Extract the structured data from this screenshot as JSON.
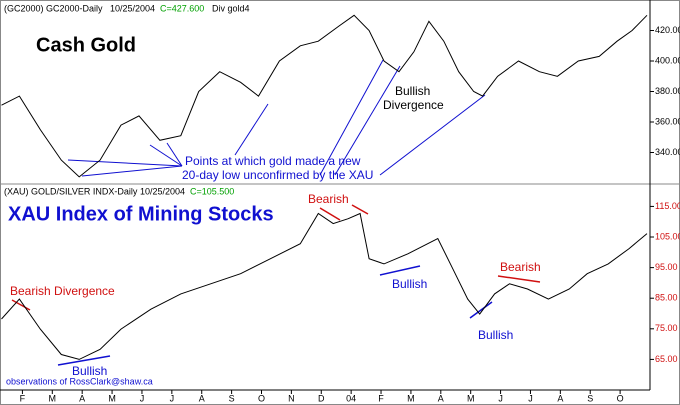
{
  "chart_data": [
    {
      "type": "line",
      "title": "Cash Gold",
      "header": [
        "(GC2000) GC2000-Daily",
        "10/25/2004",
        "C=427.600",
        "Div gold4"
      ],
      "color": "#000000",
      "x": [
        0.3,
        0.9,
        1.6,
        2.3,
        2.9,
        3.6,
        4.3,
        4.9,
        5.6,
        6.3,
        6.9,
        7.6,
        8.3,
        8.9,
        9.6,
        10.3,
        10.9,
        11.6,
        12.1,
        12.6,
        13.1,
        13.6,
        14.1,
        14.6,
        15.1,
        15.6,
        16.1,
        16.4,
        16.9,
        17.6,
        18.3,
        18.9,
        19.6,
        20.3,
        20.9,
        21.4,
        21.9
      ],
      "values": [
        371,
        377,
        355,
        335,
        324,
        335,
        358,
        364,
        348,
        351,
        380,
        393,
        386,
        377,
        400,
        410,
        413,
        423,
        430,
        420,
        400,
        393,
        406,
        426,
        413,
        393,
        380,
        377,
        390,
        400,
        393,
        390,
        400,
        403,
        413,
        420,
        430
      ],
      "xlim": [
        0.25,
        22
      ],
      "ylim": [
        320,
        440
      ],
      "yticks": [
        {
          "value": 340,
          "label": "340.00"
        },
        {
          "value": 360,
          "label": "360.00"
        },
        {
          "value": 380,
          "label": "380.00"
        },
        {
          "value": 400,
          "label": "400.00"
        },
        {
          "value": 420,
          "label": "420.00"
        }
      ],
      "annotations": [
        "Points at which gold made a new",
        "20-day low unconfirmed by the XAU",
        "Bullish",
        "Divergence"
      ]
    },
    {
      "type": "line",
      "title": "XAU Index of Mining Stocks",
      "header": [
        "(XAU) GOLD/SILVER INDX-Daily",
        "10/25/2004",
        "C=105.500"
      ],
      "color": "#000000",
      "x": [
        0.3,
        0.9,
        1.6,
        2.3,
        2.9,
        3.6,
        4.3,
        5.3,
        6.3,
        7.3,
        8.3,
        9.3,
        10.3,
        10.9,
        11.4,
        11.9,
        12.3,
        12.6,
        13.1,
        13.9,
        14.9,
        15.4,
        15.9,
        16.3,
        16.8,
        17.3,
        17.9,
        18.6,
        19.3,
        19.9,
        20.6,
        21.3,
        21.9
      ],
      "values": [
        78.2,
        84.7,
        74.9,
        66.6,
        65,
        68.3,
        74.9,
        81.4,
        86.4,
        89.7,
        93,
        97.9,
        102.8,
        112.7,
        109.4,
        111,
        112.7,
        97.9,
        96.2,
        99.5,
        104.5,
        94.6,
        84.7,
        79.8,
        86.4,
        89.7,
        88,
        84.7,
        88,
        93,
        96.2,
        101.2,
        106.1
      ],
      "xlim": [
        0.25,
        22
      ],
      "ylim": [
        55,
        122
      ],
      "yticks": [
        {
          "value": 65,
          "label": "65.00"
        },
        {
          "value": 75,
          "label": "75.00"
        },
        {
          "value": 85,
          "label": "85.00"
        },
        {
          "value": 95,
          "label": "95.00"
        },
        {
          "value": 105,
          "label": "105.00"
        },
        {
          "value": 115,
          "label": "115.00"
        }
      ],
      "xticks": [
        {
          "value": 1,
          "label": "F"
        },
        {
          "value": 2,
          "label": "M"
        },
        {
          "value": 3,
          "label": "A"
        },
        {
          "value": 4,
          "label": "M"
        },
        {
          "value": 5,
          "label": "J"
        },
        {
          "value": 6,
          "label": "J"
        },
        {
          "value": 7,
          "label": "A"
        },
        {
          "value": 8,
          "label": "S"
        },
        {
          "value": 9,
          "label": "O"
        },
        {
          "value": 10,
          "label": "N"
        },
        {
          "value": 11,
          "label": "D"
        },
        {
          "value": 12,
          "label": "04"
        },
        {
          "value": 13,
          "label": "F"
        },
        {
          "value": 14,
          "label": "M"
        },
        {
          "value": 15,
          "label": "A"
        },
        {
          "value": 16,
          "label": "M"
        },
        {
          "value": 17,
          "label": "J"
        },
        {
          "value": 18,
          "label": "J"
        },
        {
          "value": 19,
          "label": "A"
        },
        {
          "value": 20,
          "label": "S"
        },
        {
          "value": 21,
          "label": "O"
        }
      ],
      "annotations": [
        "Bearish Divergence",
        "Bearish",
        "Bullish",
        "Bullish",
        "Bullish",
        "Bearish",
        "observations of RossClark@shaw.ca"
      ]
    }
  ]
}
